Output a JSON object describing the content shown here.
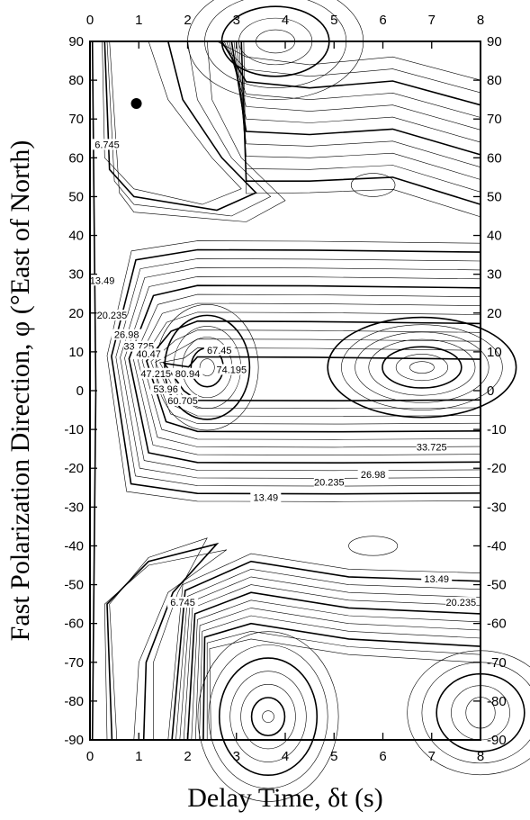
{
  "chart_data": {
    "type": "contour",
    "xlabel": "Delay Time,  δt (s)",
    "ylabel": "Fast Polarization Direction,  φ (°East of North)",
    "xlim": [
      0,
      8
    ],
    "ylim": [
      -90,
      90
    ],
    "xticks": [
      "0",
      "1",
      "2",
      "3",
      "4",
      "5",
      "6",
      "7",
      "8"
    ],
    "yticks": [
      "-90",
      "-80",
      "-70",
      "-60",
      "-50",
      "-40",
      "-30",
      "-20",
      "-10",
      "0",
      "10",
      "20",
      "30",
      "40",
      "50",
      "60",
      "70",
      "80",
      "90"
    ],
    "mirror_axes": true,
    "best_fit_point": {
      "x": 0.95,
      "y": 74
    },
    "contour_levels_labeled": [
      6.745,
      13.49,
      20.235,
      26.98,
      33.725,
      40.47,
      47.215,
      53.96,
      60.705,
      67.45,
      74.195,
      80.94
    ],
    "contour_labels": [
      {
        "text": "6.745",
        "x": 0.35,
        "y": 63
      },
      {
        "text": "13.49",
        "x": 0.25,
        "y": 28
      },
      {
        "text": "20.235",
        "x": 0.45,
        "y": 19
      },
      {
        "text": "26.98",
        "x": 0.75,
        "y": 14
      },
      {
        "text": "33.725",
        "x": 1.0,
        "y": 11
      },
      {
        "text": "40.47",
        "x": 1.2,
        "y": 9
      },
      {
        "text": "47.215",
        "x": 1.35,
        "y": 4
      },
      {
        "text": "53.96",
        "x": 1.55,
        "y": 0
      },
      {
        "text": "60.705",
        "x": 1.9,
        "y": -3
      },
      {
        "text": "67.45",
        "x": 2.65,
        "y": 10
      },
      {
        "text": "74.195",
        "x": 2.9,
        "y": 5
      },
      {
        "text": "80.94",
        "x": 2.0,
        "y": 4
      },
      {
        "text": "33.725",
        "x": 7.0,
        "y": -15
      },
      {
        "text": "26.98",
        "x": 5.8,
        "y": -22
      },
      {
        "text": "20.235",
        "x": 4.9,
        "y": -24
      },
      {
        "text": "13.49",
        "x": 3.6,
        "y": -28
      },
      {
        "text": "6.745",
        "x": 1.9,
        "y": -55
      },
      {
        "text": "13.49",
        "x": 7.1,
        "y": -49
      },
      {
        "text": "20.235",
        "x": 7.6,
        "y": -55
      }
    ],
    "grid": false
  }
}
